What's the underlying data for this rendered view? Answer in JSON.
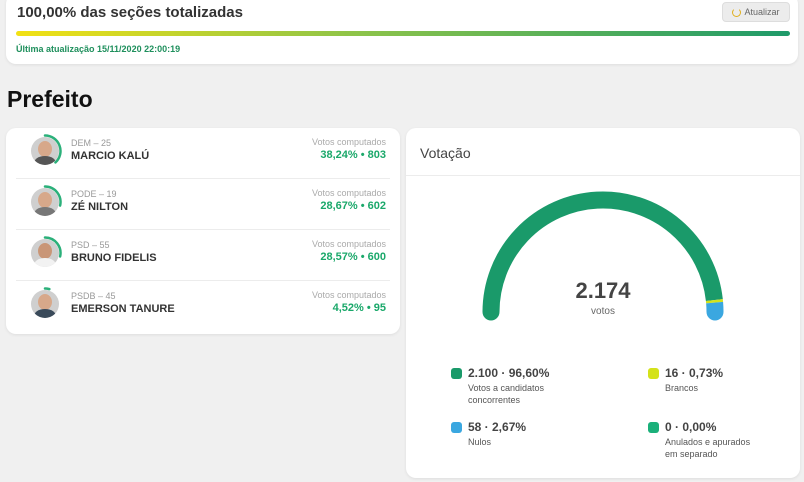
{
  "header": {
    "title": "100,00% das seções totalizadas",
    "refresh_label": "Atualizar",
    "progress_percent": 100,
    "last_update": "Última atualização 15/11/2020 22:00:19"
  },
  "section": {
    "title": "Prefeito"
  },
  "candidates": [
    {
      "party": "DEM – 25",
      "name": "MARCIO KALÚ",
      "votes_label": "Votos computados",
      "votes": "38,24% • 803",
      "percent": 38.24
    },
    {
      "party": "PODE – 19",
      "name": "ZÉ NILTON",
      "votes_label": "Votos computados",
      "votes": "28,67% • 602",
      "percent": 28.67
    },
    {
      "party": "PSD – 55",
      "name": "BRUNO FIDELIS",
      "votes_label": "Votos computados",
      "votes": "28,57% • 600",
      "percent": 28.57
    },
    {
      "party": "PSDB – 45",
      "name": "EMERSON TANURE",
      "votes_label": "Votos computados",
      "votes": "4,52% • 95",
      "percent": 4.52
    }
  ],
  "voting": {
    "title": "Votação",
    "total": "2.174",
    "total_unit": "votos",
    "legend": [
      {
        "value": "2.100 · 96,60%",
        "label": "Votos a candidatos concorrentes",
        "color": "#1a9a6a",
        "percent": 96.6
      },
      {
        "value": "16 · 0,73%",
        "label": "Brancos",
        "color": "#d4e21a",
        "percent": 0.73
      },
      {
        "value": "58 · 2,67%",
        "label": "Nulos",
        "color": "#3aa7e0",
        "percent": 2.67
      },
      {
        "value": "0 · 0,00%",
        "label": "Anulados e apurados em separado",
        "color": "#1bb07a",
        "percent": 0.0
      }
    ]
  },
  "colors": {
    "accent_green": "#1aa86a",
    "ring_green": "#2bb07a"
  }
}
